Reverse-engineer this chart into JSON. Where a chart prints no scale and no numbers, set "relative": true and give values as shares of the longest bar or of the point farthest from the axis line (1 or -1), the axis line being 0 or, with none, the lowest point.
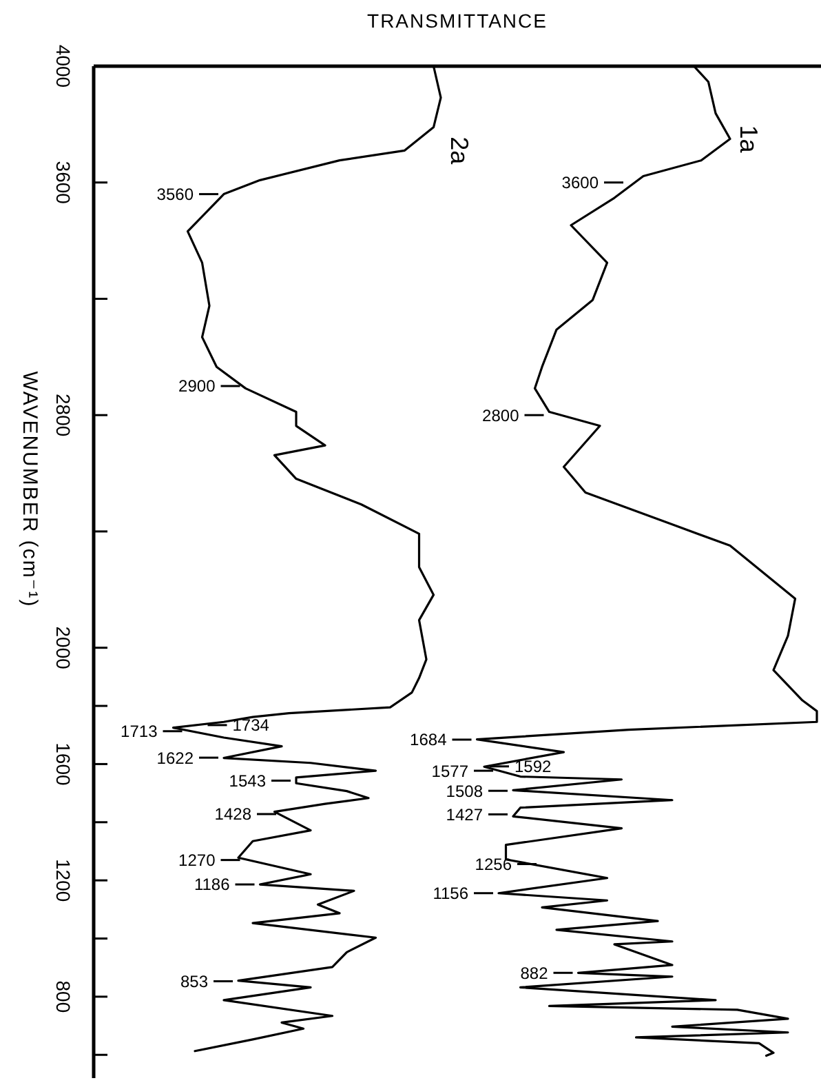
{
  "chart_data": {
    "type": "line",
    "orientation": "horizontal",
    "relative": true,
    "xlabel": "TRANSMITTANCE",
    "ylabel": "WAVENUMBER (cm⁻¹)",
    "ylim": [
      520,
      4000
    ],
    "yticks": [
      4000,
      3600,
      {
        "value": 3200,
        "label": null
      },
      2800,
      {
        "value": 2400,
        "label": null
      },
      2000,
      {
        "value": 1800,
        "label": null
      },
      1600,
      {
        "value": 1400,
        "label": null
      },
      1200,
      {
        "value": 1000,
        "label": null
      },
      800,
      {
        "value": 600,
        "label": null
      }
    ],
    "series": [
      {
        "name": "2a",
        "color": "#000000",
        "x": [
          4000,
          3892,
          3790,
          3710,
          3676,
          3608,
          3560,
          3432,
          3324,
          3176,
          3068,
          2966,
          2892,
          2811,
          2763,
          2696,
          2662,
          2581,
          2493,
          2392,
          2277,
          2182,
          2095,
          1960,
          1896,
          1846,
          1795,
          1775,
          1762,
          1745,
          1725,
          1691,
          1661,
          1621,
          1604,
          1577,
          1554,
          1534,
          1507,
          1483,
          1463,
          1436,
          1372,
          1335,
          1278,
          1221,
          1186,
          1164,
          1117,
          1087,
          1053,
          1003,
          953,
          902,
          855,
          832,
          788,
          734,
          711,
          690,
          653,
          613
        ],
        "values": [
          0.47,
          0.48,
          0.47,
          0.43,
          0.34,
          0.23,
          0.18,
          0.13,
          0.15,
          0.16,
          0.15,
          0.17,
          0.21,
          0.28,
          0.28,
          0.32,
          0.25,
          0.28,
          0.37,
          0.45,
          0.45,
          0.47,
          0.45,
          0.46,
          0.45,
          0.44,
          0.41,
          0.27,
          0.22,
          0.18,
          0.11,
          0.18,
          0.26,
          0.18,
          0.3,
          0.39,
          0.28,
          0.28,
          0.35,
          0.38,
          0.32,
          0.25,
          0.3,
          0.22,
          0.2,
          0.3,
          0.23,
          0.36,
          0.31,
          0.34,
          0.22,
          0.39,
          0.35,
          0.33,
          0.2,
          0.3,
          0.18,
          0.33,
          0.26,
          0.29,
          0.22,
          0.14
        ]
      },
      {
        "name": "1a",
        "color": "#000000",
        "x": [
          4000,
          3946,
          3838,
          3750,
          3676,
          3622,
          3547,
          3453,
          3324,
          3196,
          3094,
          2966,
          2892,
          2811,
          2763,
          2622,
          2534,
          2351,
          2169,
          2041,
          1923,
          1819,
          1782,
          1745,
          1718,
          1685,
          1641,
          1591,
          1557,
          1547,
          1510,
          1476,
          1450,
          1420,
          1379,
          1322,
          1272,
          1208,
          1156,
          1131,
          1107,
          1060,
          1030,
          990,
          980,
          909,
          882,
          869,
          832,
          788,
          768,
          755,
          724,
          697,
          677,
          660,
          640,
          607,
          597
        ],
        "values": [
          0.83,
          0.85,
          0.86,
          0.88,
          0.84,
          0.76,
          0.72,
          0.66,
          0.71,
          0.69,
          0.64,
          0.62,
          0.61,
          0.63,
          0.7,
          0.65,
          0.68,
          0.88,
          0.97,
          0.96,
          0.94,
          0.98,
          1,
          1,
          0.74,
          0.53,
          0.65,
          0.54,
          0.59,
          0.73,
          0.58,
          0.8,
          0.59,
          0.58,
          0.73,
          0.57,
          0.57,
          0.71,
          0.56,
          0.71,
          0.62,
          0.78,
          0.64,
          0.8,
          0.72,
          0.8,
          0.67,
          0.8,
          0.59,
          0.86,
          0.63,
          0.89,
          0.96,
          0.8,
          0.96,
          0.75,
          0.92,
          0.94,
          0.93
        ]
      }
    ],
    "annotations": [
      {
        "text": "3560",
        "x": 0.18,
        "y": 3560
      },
      {
        "text": "2900",
        "x": 0.21,
        "y": 2900
      },
      {
        "text": "3600",
        "x": 0.74,
        "y": 3600
      },
      {
        "text": "2800",
        "x": 0.63,
        "y": 2800
      },
      {
        "text": "1713",
        "x": 0.13,
        "y": 1713
      },
      {
        "text": "1734",
        "x": 0.15,
        "y": 1734
      },
      {
        "text": "1622",
        "x": 0.18,
        "y": 1622
      },
      {
        "text": "1543",
        "x": 0.28,
        "y": 1543
      },
      {
        "text": "1428",
        "x": 0.26,
        "y": 1428
      },
      {
        "text": "1270",
        "x": 0.21,
        "y": 1270
      },
      {
        "text": "1186",
        "x": 0.23,
        "y": 1186
      },
      {
        "text": "853",
        "x": 0.2,
        "y": 853
      },
      {
        "text": "1684",
        "x": 0.53,
        "y": 1684
      },
      {
        "text": "1592",
        "x": 0.54,
        "y": 1592
      },
      {
        "text": "1577",
        "x": 0.56,
        "y": 1577
      },
      {
        "text": "1508",
        "x": 0.58,
        "y": 1508
      },
      {
        "text": "1427",
        "x": 0.58,
        "y": 1427
      },
      {
        "text": "1256",
        "x": 0.62,
        "y": 1256
      },
      {
        "text": "1156",
        "x": 0.56,
        "y": 1156
      },
      {
        "text": "882",
        "x": 0.67,
        "y": 882
      }
    ]
  }
}
